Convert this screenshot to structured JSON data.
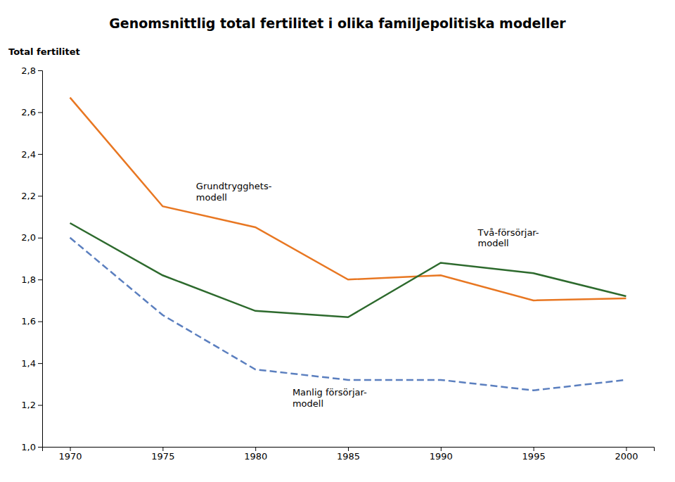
{
  "chart_data": {
    "type": "line",
    "title": "Genomsnittlig total fertilitet i olika familjepolitiska modeller",
    "y_label": "Total fertilitet",
    "x": [
      1970,
      1975,
      1980,
      1985,
      1990,
      1995,
      2000
    ],
    "series": [
      {
        "color": "#E87722",
        "line_style": "solid",
        "values": [
          2.67,
          2.15,
          2.05,
          1.8,
          1.82,
          1.7,
          1.71
        ]
      },
      {
        "color": "#2D6A2D",
        "line_style": "solid",
        "values": [
          2.07,
          1.82,
          1.65,
          1.62,
          1.88,
          1.83,
          1.72
        ]
      },
      {
        "color": "#5B7FBF",
        "line_style": "dashed",
        "values": [
          2.0,
          1.63,
          1.37,
          1.32,
          1.32,
          1.27,
          1.32
        ]
      }
    ],
    "annotations": [
      {
        "text": "Grundtrygghets-\nmodell",
        "x": 1976.8,
        "y": 2.22
      },
      {
        "text": "Två-försörjar-\nmodell",
        "x": 1992.0,
        "y": 2.0
      },
      {
        "text": "Manlig försörjar-\nmodell",
        "x": 1982.0,
        "y": 1.235
      }
    ],
    "xlim": [
      1968.5,
      2001.5
    ],
    "xticks": [
      1970,
      1975,
      1980,
      1985,
      1990,
      1995,
      2000
    ],
    "ylim": [
      1.0,
      2.8
    ],
    "yticks": [
      {
        "value": 1.0,
        "label": "1,0"
      },
      {
        "value": 1.2,
        "label": "1,2"
      },
      {
        "value": 1.4,
        "label": "1,4"
      },
      {
        "value": 1.6,
        "label": "1,6"
      },
      {
        "value": 1.8,
        "label": "1,8"
      },
      {
        "value": 2.0,
        "label": "2,0"
      },
      {
        "value": 2.2,
        "label": "2,2"
      },
      {
        "value": 2.4,
        "label": "2,4"
      },
      {
        "value": 2.6,
        "label": "2,6"
      },
      {
        "value": 2.8,
        "label": "2,8"
      }
    ],
    "grid": false
  }
}
